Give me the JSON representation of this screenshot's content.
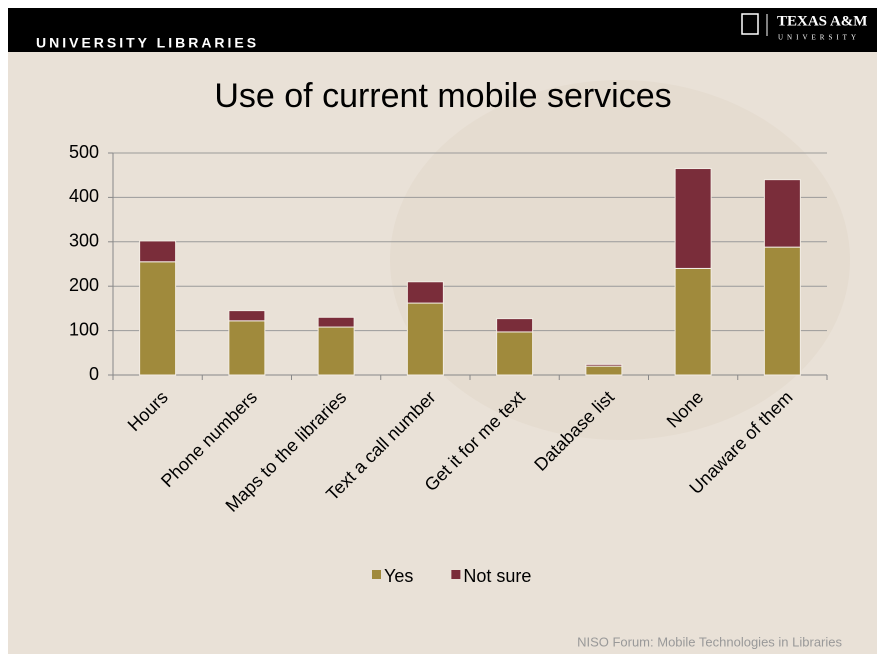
{
  "header": {
    "unit": "UNIVERSITY LIBRARIES",
    "logo": "TEXAS A&M",
    "logo_sub": "UNIVERSITY"
  },
  "footer": "NISO Forum:  Mobile Technologies in Libraries",
  "chart_data": {
    "type": "stacked_bar",
    "title": "Use of current mobile services",
    "categories": [
      "Hours",
      "Phone numbers",
      "Maps to the libraries",
      "Text a call number",
      "Get it for me text",
      "Database list",
      "None",
      "Unaware of them"
    ],
    "series": [
      {
        "name": "Yes",
        "color": "#a08a3c",
        "values": [
          255,
          122,
          108,
          162,
          97,
          20,
          240,
          288
        ]
      },
      {
        "name": "Not sure",
        "color": "#7a2d3a",
        "values": [
          47,
          23,
          22,
          48,
          30,
          4,
          225,
          152
        ]
      }
    ],
    "ylim": [
      0,
      500
    ],
    "yticks": [
      0,
      100,
      200,
      300,
      400,
      500
    ],
    "grid": true,
    "legend": "bottom"
  }
}
